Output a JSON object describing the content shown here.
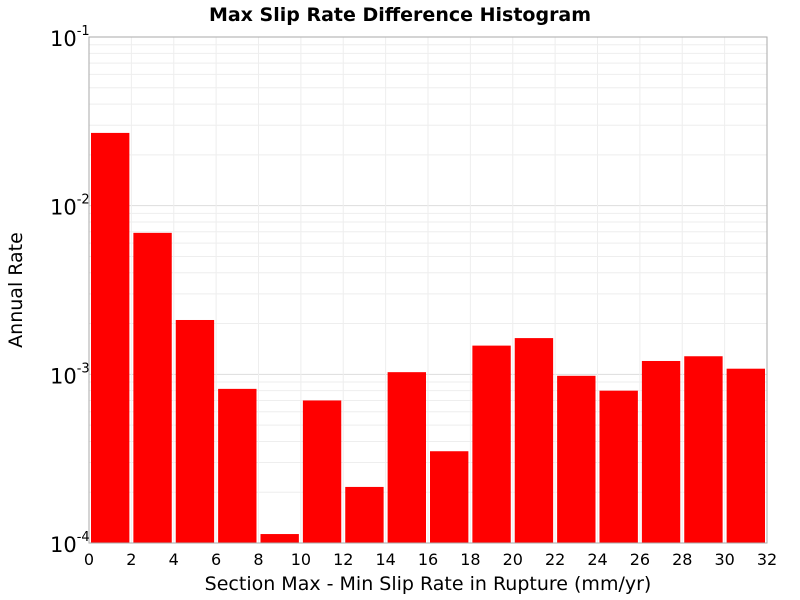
{
  "chart_data": {
    "type": "bar",
    "title": "Max Slip Rate Difference Histogram",
    "xlabel": "Section Max - Min Slip Rate in Rupture (mm/yr)",
    "ylabel": "Annual Rate",
    "x_ticks": [
      "0",
      "2",
      "4",
      "6",
      "8",
      "10",
      "12",
      "14",
      "16",
      "18",
      "20",
      "22",
      "24",
      "26",
      "28",
      "30",
      "32"
    ],
    "xlim": [
      0,
      32
    ],
    "bin_width": 2,
    "yscale": "log",
    "ylim": [
      0.0001,
      0.1
    ],
    "y_ticks": [
      {
        "base": "10",
        "exp": "-4"
      },
      {
        "base": "10",
        "exp": "-3"
      },
      {
        "base": "10",
        "exp": "-2"
      },
      {
        "base": "10",
        "exp": "-1"
      }
    ],
    "grid": true,
    "bar_color": "#ff0000",
    "bins": [
      {
        "x": 1,
        "value": 0.027
      },
      {
        "x": 3,
        "value": 0.0069
      },
      {
        "x": 5,
        "value": 0.0021
      },
      {
        "x": 7,
        "value": 0.00082
      },
      {
        "x": 9,
        "value": 0.000113
      },
      {
        "x": 11,
        "value": 0.0007
      },
      {
        "x": 13,
        "value": 0.000215
      },
      {
        "x": 15,
        "value": 0.00103
      },
      {
        "x": 17,
        "value": 0.00035
      },
      {
        "x": 19,
        "value": 0.00148
      },
      {
        "x": 21,
        "value": 0.00164
      },
      {
        "x": 23,
        "value": 0.00098
      },
      {
        "x": 25,
        "value": 0.0008
      },
      {
        "x": 27,
        "value": 0.0012
      },
      {
        "x": 29,
        "value": 0.00128
      },
      {
        "x": 31,
        "value": 0.00108
      }
    ]
  }
}
